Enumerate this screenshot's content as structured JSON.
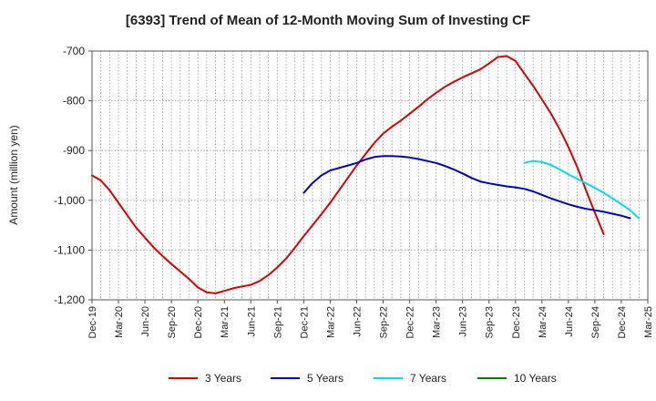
{
  "chart_data": {
    "type": "line",
    "title": "[6393]  Trend of Mean of 12-Month Moving Sum of Investing CF",
    "xlabel": "",
    "ylabel": "Amount (million yen)",
    "ylim": [
      -1200,
      -700
    ],
    "yticks": [
      -700,
      -800,
      -900,
      -1000,
      -1100,
      -1200
    ],
    "ytick_labels": [
      "-700",
      "-800",
      "-900",
      "-1,000",
      "-1,100",
      "-1,200"
    ],
    "x_start": "Dec-19",
    "x_end": "Mar-25",
    "x_tick_labels": [
      "Dec-19",
      "Mar-20",
      "Jun-20",
      "Sep-20",
      "Dec-20",
      "Mar-21",
      "Jun-21",
      "Sep-21",
      "Dec-21",
      "Mar-22",
      "Jun-22",
      "Sep-22",
      "Dec-22",
      "Mar-23",
      "Jun-23",
      "Sep-23",
      "Dec-23",
      "Mar-24",
      "Jun-24",
      "Sep-24",
      "Dec-24",
      "Mar-25"
    ],
    "grid": true,
    "legend_position": "bottom",
    "series": [
      {
        "name": "3 Years",
        "color": "#dd0000",
        "start_month_index": 0,
        "values": [
          -950,
          -960,
          -980,
          -1005,
          -1030,
          -1055,
          -1075,
          -1095,
          -1112,
          -1128,
          -1143,
          -1158,
          -1175,
          -1185,
          -1187,
          -1182,
          -1177,
          -1173,
          -1170,
          -1162,
          -1150,
          -1135,
          -1117,
          -1095,
          -1072,
          -1050,
          -1028,
          -1005,
          -980,
          -955,
          -930,
          -907,
          -885,
          -866,
          -852,
          -840,
          -826,
          -812,
          -797,
          -784,
          -772,
          -762,
          -753,
          -745,
          -737,
          -725,
          -712,
          -710,
          -720,
          -745,
          -770,
          -797,
          -825,
          -857,
          -893,
          -933,
          -980,
          -1025,
          -1068
        ]
      },
      {
        "name": "5 Years",
        "color": "#0000cc",
        "start_month_index": 24,
        "values": [
          -985,
          -965,
          -950,
          -940,
          -935,
          -930,
          -925,
          -918,
          -913,
          -911,
          -911,
          -912,
          -914,
          -917,
          -921,
          -925,
          -931,
          -938,
          -946,
          -955,
          -962,
          -966,
          -969,
          -972,
          -974,
          -977,
          -982,
          -989,
          -996,
          -1002,
          -1008,
          -1013,
          -1017,
          -1020,
          -1023,
          -1027,
          -1031,
          -1036
        ]
      },
      {
        "name": "7 Years",
        "color": "#00e0e0",
        "start_month_index": 49,
        "values": [
          -925,
          -921,
          -923,
          -929,
          -938,
          -948,
          -957,
          -966,
          -975,
          -985,
          -996,
          -1008,
          -1020,
          -1036
        ]
      },
      {
        "name": "10 Years",
        "color": "#008000",
        "start_month_index": 0,
        "values": []
      }
    ]
  }
}
